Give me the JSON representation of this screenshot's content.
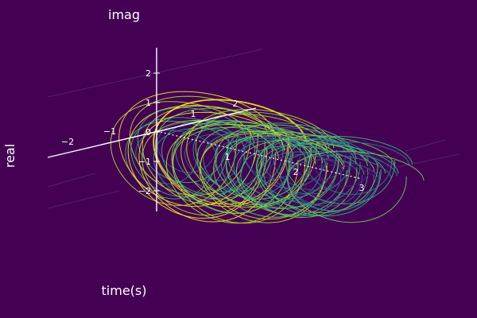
{
  "chart_data": {
    "type": "line",
    "projection": "3d",
    "title": "",
    "axis_labels": {
      "y": "imag",
      "x": "real",
      "z": "time(s)"
    },
    "ticks": {
      "imag": [
        "2",
        "1",
        "0",
        "−1",
        "−2"
      ],
      "real_left": [
        "−2",
        "−1"
      ],
      "real_right": [
        "1",
        "2"
      ],
      "time": [
        "1",
        "2",
        "3"
      ]
    },
    "colormap": "viridis",
    "colors": [
      "#fde725",
      "#b5de2b",
      "#6ece58",
      "#35b779",
      "#1f9e89",
      "#26828e",
      "#31688e",
      "#3e4989",
      "#482878"
    ],
    "series_count": 60,
    "grid": true,
    "legend": "none"
  }
}
